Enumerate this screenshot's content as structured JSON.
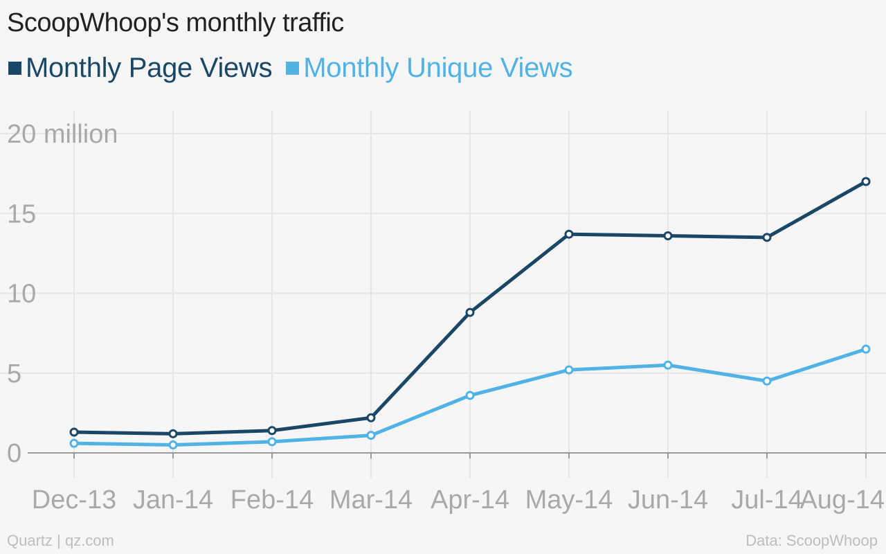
{
  "title": "ScoopWhoop's monthly traffic",
  "footer": {
    "source_left": "Quartz | qz.com",
    "source_right": "Data: ScoopWhoop"
  },
  "colors": {
    "page_views": "#1b4767",
    "unique_views": "#51b2e5",
    "grid": "#e6e6e6",
    "axis": "#9a9a9a",
    "background": "#f6f6f6"
  },
  "chart_data": {
    "type": "line",
    "title": "ScoopWhoop's monthly traffic",
    "xlabel": "",
    "ylabel": "",
    "categories": [
      "Dec-13",
      "Jan-14",
      "Feb-14",
      "Mar-14",
      "Apr-14",
      "May-14",
      "Jun-14",
      "Jul-14",
      "Aug-14"
    ],
    "y_tick_labels": [
      "0",
      "5",
      "10",
      "15",
      "20 million"
    ],
    "y_ticks": [
      0,
      5,
      10,
      15,
      20
    ],
    "ylim": [
      0,
      20
    ],
    "grid": true,
    "legend_position": "top-left",
    "series": [
      {
        "name": "Monthly Page Views",
        "color": "#1b4767",
        "values": [
          1.3,
          1.2,
          1.4,
          2.2,
          8.8,
          13.7,
          13.6,
          13.5,
          17.0
        ]
      },
      {
        "name": "Monthly Unique Views",
        "color": "#51b2e5",
        "values": [
          0.6,
          0.5,
          0.7,
          1.1,
          3.6,
          5.2,
          5.5,
          4.5,
          6.5
        ]
      }
    ]
  }
}
